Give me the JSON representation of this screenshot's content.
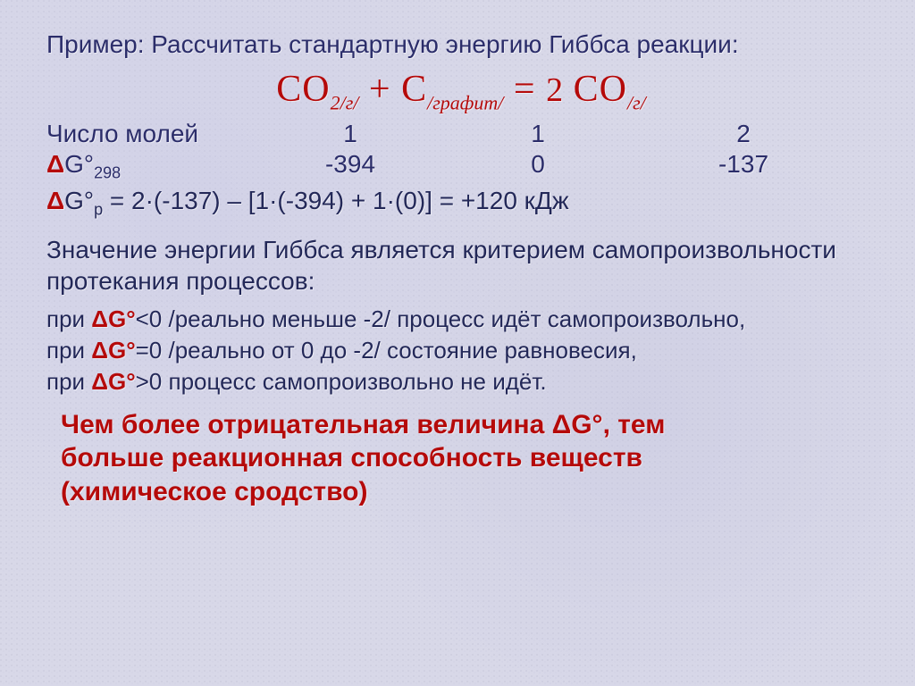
{
  "title": "Пример: Рассчитать стандартную энергию Гиббса реакции:",
  "equation": {
    "lhs1": "СО",
    "sub1": "2/г/",
    "plus": " + ",
    "lhs2": "С",
    "sub2": "/графит/",
    "eq": "  =  ",
    "coef": "2 ",
    "rhs": "СО",
    "sub3": "/г/"
  },
  "rows": {
    "moles_label": "Число молей",
    "moles": [
      "1",
      "1",
      "2"
    ],
    "g_label_prefix": "Δ",
    "g_label_mid": "G°",
    "g_label_sub": "298",
    "gvals": [
      "-394",
      "0",
      "-137"
    ]
  },
  "calc": {
    "prefix": "Δ",
    "mid": "G°",
    "sub": "р",
    "rest": " = 2·(-137) – [1·(-394) + 1·(0)] = +120 кДж"
  },
  "para1": "Значение энергии Гиббса является критерием самопроизвольности протекания процессов:",
  "conds": [
    {
      "pre": "при ",
      "sym": "ΔG°",
      "op": "<0 ",
      "rest": "/реально меньше -2/ процесс идёт самопроизвольно,"
    },
    {
      "pre": "при ",
      "sym": "ΔG°",
      "op": "=0 ",
      "rest": "/реально от 0 до -2/ состояние равновесия,"
    },
    {
      "pre": "при ",
      "sym": "ΔG°",
      "op": ">0 ",
      "rest": "процесс самопроизвольно не идёт."
    }
  ],
  "final": {
    "l1a": "Чем более отрицательная величина ",
    "l1b": "ΔG°",
    "l1c": ", тем",
    "l2": "больше реакционная способность веществ",
    "l3": "(химическое сродство)"
  },
  "colors": {
    "text": "#2b2d6a",
    "accent": "#b50a0a",
    "bg": "#d8d8e8"
  }
}
